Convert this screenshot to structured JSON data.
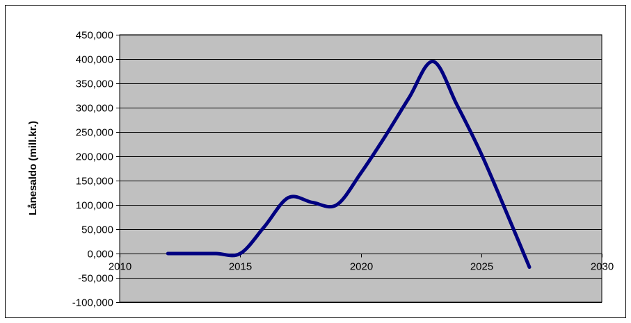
{
  "chart_data": {
    "type": "line",
    "title": "",
    "xlabel": "",
    "ylabel": "Lånesaldo (mill.kr.)",
    "xlim": [
      2010,
      2030
    ],
    "ylim": [
      -100000,
      450000
    ],
    "x_ticks": [
      2010,
      2015,
      2020,
      2025,
      2030
    ],
    "x_tick_labels": [
      "2010",
      "2015",
      "2020",
      "2025",
      "2030"
    ],
    "y_ticks": [
      450000,
      400000,
      350000,
      300000,
      250000,
      200000,
      150000,
      100000,
      50000,
      0,
      -50000,
      -100000
    ],
    "y_tick_labels": [
      "450,000",
      "400,000",
      "350,000",
      "300,000",
      "250,000",
      "200,000",
      "150,000",
      "100,000",
      "50,000",
      "0,000",
      "-50,000",
      "-100,000"
    ],
    "grid": true,
    "legend": "none",
    "colors": {
      "plot_background": "#c0c0c0",
      "series": "#000080",
      "gridline": "#000000"
    },
    "series": [
      {
        "x": [
          2012,
          2013,
          2014,
          2015,
          2016,
          2017,
          2018,
          2019,
          2020,
          2021,
          2022,
          2023,
          2024,
          2025,
          2026,
          2027
        ],
        "values": [
          0,
          0,
          0,
          0,
          55000,
          115000,
          105000,
          100000,
          165000,
          240000,
          320000,
          395000,
          305000,
          205000,
          90000,
          -28000
        ]
      }
    ]
  }
}
